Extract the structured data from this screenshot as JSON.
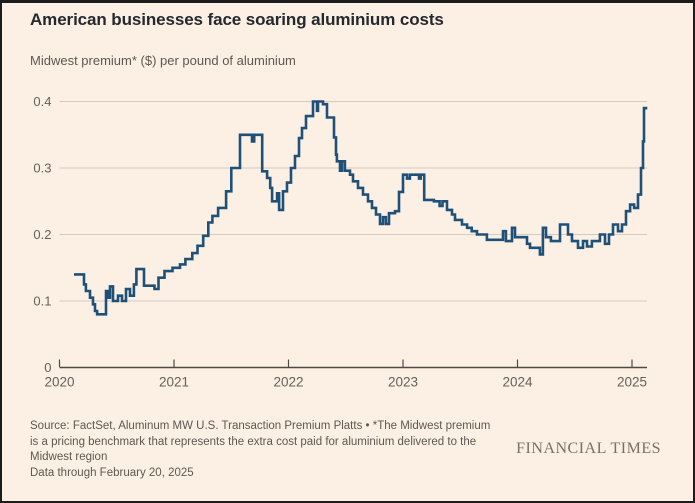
{
  "page": {
    "background": "#FCF0E4",
    "border_color": "#1C1C1C"
  },
  "header": {
    "title": "American businesses face soaring aluminium costs",
    "subtitle": "Midwest premium* ($) per pound of aluminium"
  },
  "footer": {
    "source_note": "Source: FactSet, Aluminum MW U.S. Transaction Premium Platts • *The Midwest premium is a pricing benchmark that represents the extra cost paid for aluminium delivered to the Midwest region",
    "data_through": "Data through February 20, 2025",
    "brand": "FINANCIAL TIMES"
  },
  "colors": {
    "line": "#1F5077",
    "gridline": "#D4CABF",
    "axis": "#4E4A45",
    "tick_label": "#66605C",
    "title_text": "#25282E",
    "muted_text": "#5E5752",
    "brand_text": "#7A7064"
  },
  "chart_data": {
    "type": "line",
    "step_interpolation": true,
    "title": "American businesses face soaring aluminium costs",
    "ylabel": "Midwest premium* ($) per pound of aluminium",
    "xlabel": "",
    "xlim": [
      2020,
      2025.35
    ],
    "ylim": [
      0,
      0.42
    ],
    "grid": "horizontal",
    "legend": "none",
    "x_ticks": [
      {
        "value": 2020,
        "label": "2020"
      },
      {
        "value": 2021,
        "label": "2021"
      },
      {
        "value": 2022,
        "label": "2022"
      },
      {
        "value": 2023,
        "label": "2023"
      },
      {
        "value": 2024,
        "label": "2024"
      },
      {
        "value": 2025,
        "label": "2025"
      }
    ],
    "y_ticks": [
      {
        "value": 0,
        "label": "0"
      },
      {
        "value": 0.1,
        "label": "0.1"
      },
      {
        "value": 0.2,
        "label": "0.2"
      },
      {
        "value": 0.3,
        "label": "0.3"
      },
      {
        "value": 0.4,
        "label": "0.4"
      }
    ],
    "series": [
      {
        "name": "Midwest premium ($ per pound of aluminium)",
        "color": "#1F5077",
        "points": [
          [
            2020.127,
            0.14
          ],
          [
            2020.214,
            0.125
          ],
          [
            2020.231,
            0.115
          ],
          [
            2020.266,
            0.105
          ],
          [
            2020.293,
            0.095
          ],
          [
            2020.31,
            0.085
          ],
          [
            2020.328,
            0.08
          ],
          [
            2020.406,
            0.115
          ],
          [
            2020.424,
            0.105
          ],
          [
            2020.441,
            0.122
          ],
          [
            2020.467,
            0.1
          ],
          [
            2020.511,
            0.108
          ],
          [
            2020.546,
            0.1
          ],
          [
            2020.581,
            0.118
          ],
          [
            2020.616,
            0.108
          ],
          [
            2020.65,
            0.125
          ],
          [
            2020.672,
            0.148
          ],
          [
            2020.738,
            0.123
          ],
          [
            2020.83,
            0.118
          ],
          [
            2020.865,
            0.135
          ],
          [
            2020.917,
            0.145
          ],
          [
            2020.987,
            0.15
          ],
          [
            2021.052,
            0.155
          ],
          [
            2021.1,
            0.163
          ],
          [
            2021.16,
            0.172
          ],
          [
            2021.205,
            0.183
          ],
          [
            2021.255,
            0.198
          ],
          [
            2021.3,
            0.218
          ],
          [
            2021.335,
            0.228
          ],
          [
            2021.385,
            0.24
          ],
          [
            2021.455,
            0.265
          ],
          [
            2021.5,
            0.3
          ],
          [
            2021.576,
            0.35
          ],
          [
            2021.681,
            0.34
          ],
          [
            2021.7,
            0.35
          ],
          [
            2021.77,
            0.295
          ],
          [
            2021.813,
            0.285
          ],
          [
            2021.84,
            0.27
          ],
          [
            2021.857,
            0.25
          ],
          [
            2021.9,
            0.262
          ],
          [
            2021.918,
            0.237
          ],
          [
            2021.952,
            0.265
          ],
          [
            2021.987,
            0.278
          ],
          [
            2022.022,
            0.3
          ],
          [
            2022.057,
            0.318
          ],
          [
            2022.092,
            0.345
          ],
          [
            2022.118,
            0.36
          ],
          [
            2022.153,
            0.378
          ],
          [
            2022.214,
            0.4
          ],
          [
            2022.249,
            0.386
          ],
          [
            2022.258,
            0.4
          ],
          [
            2022.301,
            0.396
          ],
          [
            2022.336,
            0.376
          ],
          [
            2022.397,
            0.346
          ],
          [
            2022.415,
            0.32
          ],
          [
            2022.423,
            0.31
          ],
          [
            2022.45,
            0.296
          ],
          [
            2022.467,
            0.31
          ],
          [
            2022.493,
            0.296
          ],
          [
            2022.537,
            0.29
          ],
          [
            2022.563,
            0.28
          ],
          [
            2022.607,
            0.27
          ],
          [
            2022.651,
            0.26
          ],
          [
            2022.694,
            0.25
          ],
          [
            2022.729,
            0.24
          ],
          [
            2022.764,
            0.23
          ],
          [
            2022.799,
            0.216
          ],
          [
            2022.825,
            0.226
          ],
          [
            2022.851,
            0.216
          ],
          [
            2022.878,
            0.232
          ],
          [
            2022.93,
            0.235
          ],
          [
            2022.965,
            0.264
          ],
          [
            2023.0,
            0.29
          ],
          [
            2023.035,
            0.284
          ],
          [
            2023.06,
            0.29
          ],
          [
            2023.14,
            0.284
          ],
          [
            2023.155,
            0.29
          ],
          [
            2023.185,
            0.252
          ],
          [
            2023.27,
            0.25
          ],
          [
            2023.32,
            0.243
          ],
          [
            2023.345,
            0.25
          ],
          [
            2023.384,
            0.237
          ],
          [
            2023.428,
            0.23
          ],
          [
            2023.454,
            0.222
          ],
          [
            2023.515,
            0.215
          ],
          [
            2023.56,
            0.21
          ],
          [
            2023.6,
            0.205
          ],
          [
            2023.646,
            0.2
          ],
          [
            2023.733,
            0.192
          ],
          [
            2023.873,
            0.205
          ],
          [
            2023.899,
            0.19
          ],
          [
            2023.952,
            0.21
          ],
          [
            2023.978,
            0.196
          ],
          [
            2024.039,
            0.196
          ],
          [
            2024.083,
            0.186
          ],
          [
            2024.109,
            0.18
          ],
          [
            2024.196,
            0.17
          ],
          [
            2024.222,
            0.21
          ],
          [
            2024.249,
            0.196
          ],
          [
            2024.292,
            0.19
          ],
          [
            2024.371,
            0.215
          ],
          [
            2024.441,
            0.2
          ],
          [
            2024.476,
            0.19
          ],
          [
            2024.528,
            0.18
          ],
          [
            2024.572,
            0.19
          ],
          [
            2024.607,
            0.182
          ],
          [
            2024.65,
            0.19
          ],
          [
            2024.72,
            0.2
          ],
          [
            2024.764,
            0.186
          ],
          [
            2024.799,
            0.2
          ],
          [
            2024.834,
            0.215
          ],
          [
            2024.878,
            0.205
          ],
          [
            2024.913,
            0.215
          ],
          [
            2024.948,
            0.235
          ],
          [
            2024.983,
            0.245
          ],
          [
            2025.018,
            0.24
          ],
          [
            2025.052,
            0.26
          ],
          [
            2025.079,
            0.3
          ],
          [
            2025.096,
            0.34
          ],
          [
            2025.105,
            0.39
          ],
          [
            2025.122,
            0.388
          ]
        ]
      }
    ]
  }
}
